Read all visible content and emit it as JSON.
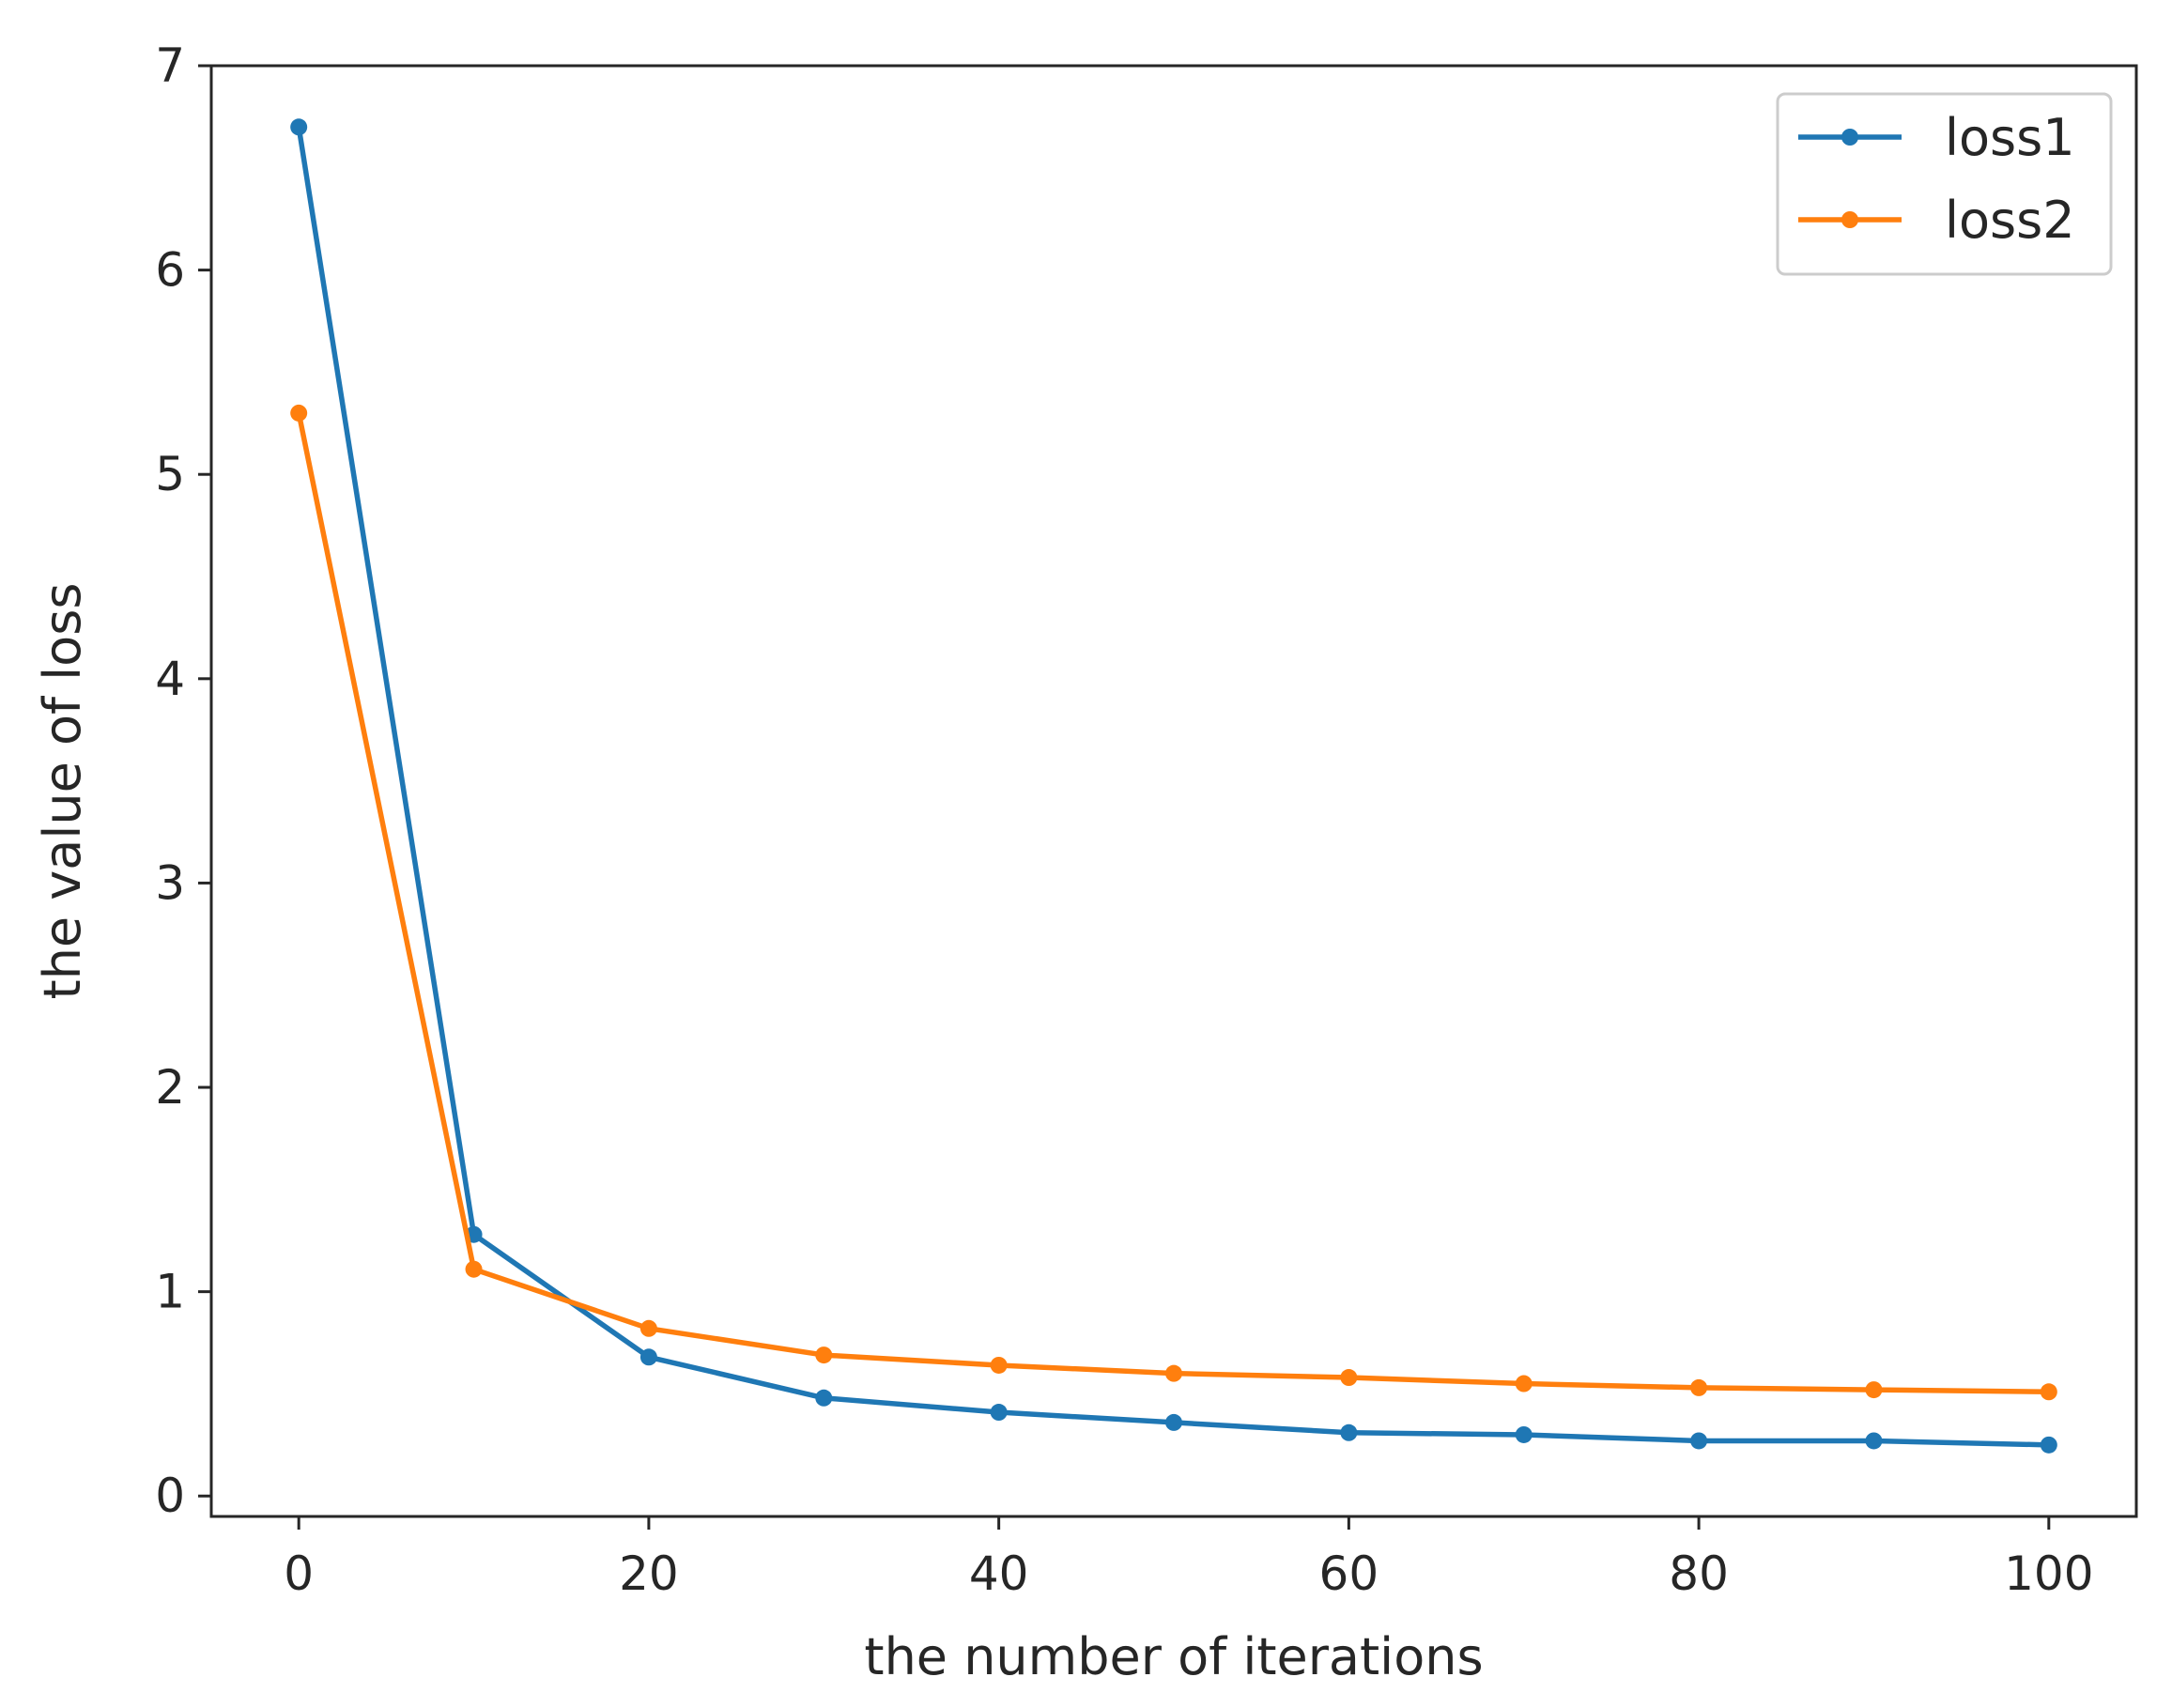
{
  "chart_data": {
    "type": "line",
    "title": "",
    "xlabel": "the number of iterations",
    "ylabel": "the value of loss",
    "xlim": [
      -5,
      105
    ],
    "ylim": [
      -0.1,
      7.0
    ],
    "x_ticks": [
      0,
      20,
      40,
      60,
      80,
      100
    ],
    "y_ticks": [
      0,
      1,
      2,
      3,
      4,
      5,
      6,
      7
    ],
    "grid": false,
    "legend_position": "top-right",
    "x": [
      0,
      10,
      20,
      30,
      40,
      50,
      60,
      70,
      80,
      90,
      100
    ],
    "series": [
      {
        "name": "loss1",
        "color": "#1f77b4",
        "values": [
          6.7,
          1.28,
          0.68,
          0.48,
          0.41,
          0.36,
          0.31,
          0.3,
          0.27,
          0.27,
          0.25
        ]
      },
      {
        "name": "loss2",
        "color": "#ff7f0e",
        "values": [
          5.3,
          1.11,
          0.82,
          0.69,
          0.64,
          0.6,
          0.58,
          0.55,
          0.53,
          0.52,
          0.51
        ]
      }
    ]
  }
}
